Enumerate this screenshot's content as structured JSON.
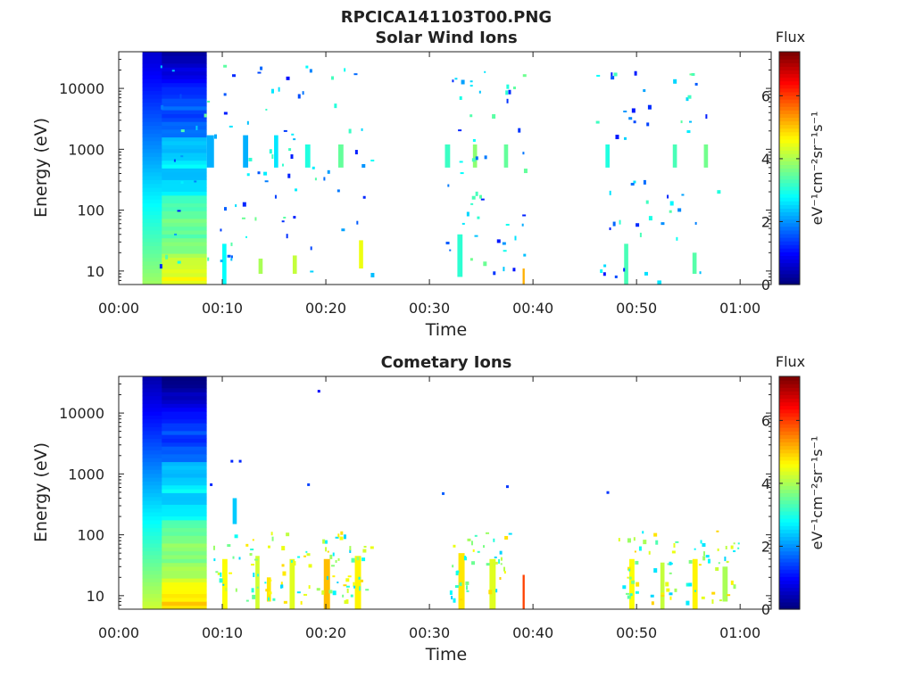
{
  "figure_title": "RPCICA141103T00.PNG",
  "chart_data": [
    {
      "type": "heatmap",
      "title": "Solar Wind Ions",
      "xlabel": "Time",
      "ylabel": "Energy (eV)",
      "yscale": "log",
      "ylim": [
        6,
        40000
      ],
      "xlim_minutes": [
        0,
        63
      ],
      "x_ticks": [
        {
          "value": 0,
          "label": "00:00"
        },
        {
          "value": 10,
          "label": "00:10"
        },
        {
          "value": 20,
          "label": "00:20"
        },
        {
          "value": 30,
          "label": "00:30"
        },
        {
          "value": 40,
          "label": "00:40"
        },
        {
          "value": 50,
          "label": "00:50"
        },
        {
          "value": 60,
          "label": "01:00"
        }
      ],
      "y_ticks": [
        {
          "value": 10,
          "label": "10"
        },
        {
          "value": 100,
          "label": "100"
        },
        {
          "value": 1000,
          "label": "1000"
        },
        {
          "value": 10000,
          "label": "10000"
        }
      ],
      "colorbar": {
        "title": "Flux",
        "unit_label": "eV⁻¹cm⁻²sr⁻¹s⁻¹",
        "range": [
          0,
          7.4
        ],
        "ticks": [
          {
            "value": 0,
            "label": "0"
          },
          {
            "value": 2,
            "label": "2"
          },
          {
            "value": 4,
            "label": "4"
          },
          {
            "value": 6,
            "label": "6"
          }
        ],
        "colormap": "jet"
      },
      "blocks": [
        {
          "t0": 2.3,
          "t1": 8.5,
          "e0": 6,
          "e1": 40000,
          "f0": 4.6,
          "f1": 0.7
        },
        {
          "t0": 8.5,
          "t1": 9.2,
          "e0": 500,
          "e1": 1700,
          "f": 2.2
        },
        {
          "t0": 10.0,
          "t1": 10.4,
          "e0": 6,
          "e1": 28,
          "f": 2.8
        },
        {
          "t0": 12.0,
          "t1": 12.5,
          "e0": 500,
          "e1": 1700,
          "f": 2.2
        },
        {
          "t0": 13.5,
          "t1": 13.9,
          "e0": 9,
          "e1": 16,
          "f": 4.0
        },
        {
          "t0": 15.0,
          "t1": 15.4,
          "e0": 500,
          "e1": 1700,
          "f": 2.6
        },
        {
          "t0": 16.8,
          "t1": 17.2,
          "e0": 9,
          "e1": 18,
          "f": 4.2
        },
        {
          "t0": 18.0,
          "t1": 18.5,
          "e0": 500,
          "e1": 1200,
          "f": 3.0
        },
        {
          "t0": 21.2,
          "t1": 21.7,
          "e0": 500,
          "e1": 1200,
          "f": 3.5
        },
        {
          "t0": 23.2,
          "t1": 23.6,
          "e0": 11,
          "e1": 32,
          "f": 4.5
        },
        {
          "t0": 31.5,
          "t1": 32.0,
          "e0": 500,
          "e1": 1200,
          "f": 3.2
        },
        {
          "t0": 32.7,
          "t1": 33.2,
          "e0": 8,
          "e1": 40,
          "f": 3.1
        },
        {
          "t0": 34.2,
          "t1": 34.6,
          "e0": 500,
          "e1": 1200,
          "f": 3.8
        },
        {
          "t0": 37.2,
          "t1": 37.6,
          "e0": 500,
          "e1": 1200,
          "f": 3.5
        },
        {
          "t0": 39.0,
          "t1": 39.2,
          "e0": 6,
          "e1": 11,
          "f": 5.2
        },
        {
          "t0": 47.0,
          "t1": 47.4,
          "e0": 500,
          "e1": 1200,
          "f": 3.0
        },
        {
          "t0": 48.8,
          "t1": 49.2,
          "e0": 6,
          "e1": 28,
          "f": 3.3
        },
        {
          "t0": 52.0,
          "t1": 52.4,
          "e0": 6,
          "e1": 7,
          "f": 2.6
        },
        {
          "t0": 53.5,
          "t1": 53.9,
          "e0": 500,
          "e1": 1200,
          "f": 3.3
        },
        {
          "t0": 55.4,
          "t1": 55.8,
          "e0": 9,
          "e1": 20,
          "f": 3.4
        },
        {
          "t0": 56.5,
          "t1": 56.9,
          "e0": 500,
          "e1": 1200,
          "f": 3.6
        }
      ],
      "scatter": {
        "seed": 11,
        "count": 190,
        "e_min": 8,
        "e_max": 25000,
        "f_min": 1.0,
        "f_max": 3.6,
        "clusters": [
          [
            8.5,
            26
          ],
          [
            14,
            26
          ],
          [
            20,
            26
          ],
          [
            33.5,
            11
          ],
          [
            37.5,
            11
          ],
          [
            48.5,
            16
          ],
          [
            55,
            16
          ]
        ]
      }
    },
    {
      "type": "heatmap",
      "title": "Cometary Ions",
      "xlabel": "Time",
      "ylabel": "Energy (eV)",
      "yscale": "log",
      "ylim": [
        6,
        40000
      ],
      "xlim_minutes": [
        0,
        63
      ],
      "x_ticks": [
        {
          "value": 0,
          "label": "00:00"
        },
        {
          "value": 10,
          "label": "00:10"
        },
        {
          "value": 20,
          "label": "00:20"
        },
        {
          "value": 30,
          "label": "00:30"
        },
        {
          "value": 40,
          "label": "00:40"
        },
        {
          "value": 50,
          "label": "00:50"
        },
        {
          "value": 60,
          "label": "01:00"
        }
      ],
      "y_ticks": [
        {
          "value": 10,
          "label": "10"
        },
        {
          "value": 100,
          "label": "100"
        },
        {
          "value": 1000,
          "label": "1000"
        },
        {
          "value": 10000,
          "label": "10000"
        }
      ],
      "colorbar": {
        "title": "Flux",
        "unit_label": "eV⁻¹cm⁻²sr⁻¹s⁻¹",
        "range": [
          0,
          7.4
        ],
        "ticks": [
          {
            "value": 0,
            "label": "0"
          },
          {
            "value": 2,
            "label": "2"
          },
          {
            "value": 4,
            "label": "4"
          },
          {
            "value": 6,
            "label": "6"
          }
        ],
        "colormap": "jet"
      },
      "blocks": [
        {
          "t0": 2.3,
          "t1": 8.5,
          "e0": 6,
          "e1": 40000,
          "f0": 5.0,
          "f1": 0.4
        },
        {
          "t0": 10.0,
          "t1": 10.5,
          "e0": 6,
          "e1": 40,
          "f": 4.6
        },
        {
          "t0": 11.0,
          "t1": 11.4,
          "e0": 150,
          "e1": 400,
          "f": 2.4
        },
        {
          "t0": 13.2,
          "t1": 13.6,
          "e0": 6,
          "e1": 45,
          "f": 4.3
        },
        {
          "t0": 14.3,
          "t1": 14.7,
          "e0": 8,
          "e1": 20,
          "f": 4.8
        },
        {
          "t0": 16.5,
          "t1": 17.0,
          "e0": 6,
          "e1": 40,
          "f": 4.4
        },
        {
          "t0": 19.8,
          "t1": 20.4,
          "e0": 6,
          "e1": 40,
          "f": 5.1
        },
        {
          "t0": 22.8,
          "t1": 23.4,
          "e0": 6,
          "e1": 45,
          "f": 4.7
        },
        {
          "t0": 32.8,
          "t1": 33.4,
          "e0": 6,
          "e1": 50,
          "f": 4.8
        },
        {
          "t0": 35.8,
          "t1": 36.4,
          "e0": 6,
          "e1": 40,
          "f": 4.4
        },
        {
          "t0": 39.0,
          "t1": 39.2,
          "e0": 6,
          "e1": 22,
          "f": 6.0
        },
        {
          "t0": 49.3,
          "t1": 49.8,
          "e0": 6,
          "e1": 40,
          "f": 4.6
        },
        {
          "t0": 52.3,
          "t1": 52.7,
          "e0": 6,
          "e1": 35,
          "f": 4.2
        },
        {
          "t0": 55.4,
          "t1": 55.9,
          "e0": 6,
          "e1": 40,
          "f": 4.7
        },
        {
          "t0": 58.3,
          "t1": 58.8,
          "e0": 8,
          "e1": 30,
          "f": 4.0
        }
      ],
      "scatter": {
        "seed": 29,
        "count": 210,
        "e_min": 8,
        "e_max": 120,
        "f_min": 2.4,
        "f_max": 5.0,
        "clusters": [
          [
            10.5,
            8
          ],
          [
            13.5,
            8
          ],
          [
            17,
            8
          ],
          [
            20.5,
            8
          ],
          [
            23.3,
            8
          ],
          [
            33.3,
            8
          ],
          [
            36.3,
            8
          ],
          [
            49.5,
            8
          ],
          [
            52.5,
            8
          ],
          [
            55.6,
            8
          ],
          [
            58.5,
            8
          ]
        ]
      },
      "points": [
        {
          "t": 19.2,
          "e": 24000,
          "f": 0.9
        },
        {
          "t": 8.8,
          "e": 700,
          "f": 1.2
        },
        {
          "t": 10.8,
          "e": 1700,
          "f": 1.2
        },
        {
          "t": 11.6,
          "e": 1700,
          "f": 1.2
        },
        {
          "t": 18.2,
          "e": 700,
          "f": 1.4
        },
        {
          "t": 31.2,
          "e": 500,
          "f": 1.6
        },
        {
          "t": 37.4,
          "e": 650,
          "f": 1.3
        },
        {
          "t": 47.1,
          "e": 520,
          "f": 1.3
        }
      ]
    }
  ]
}
